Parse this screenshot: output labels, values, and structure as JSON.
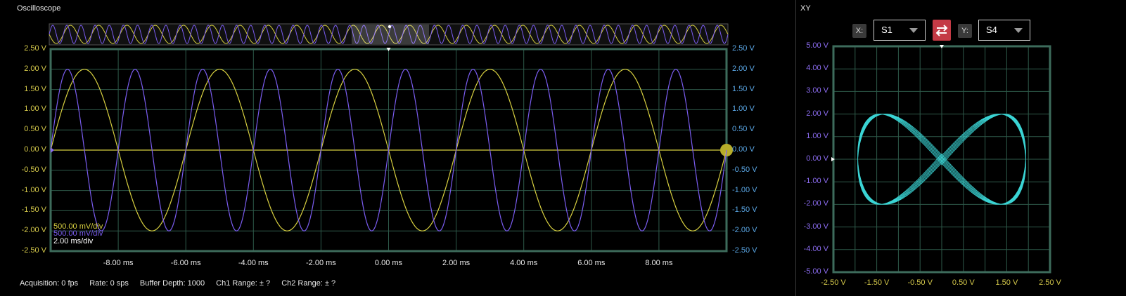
{
  "scope": {
    "title": "Oscilloscope",
    "y_left_ticks": [
      "2.50 V",
      "2.00 V",
      "1.50 V",
      "1.00 V",
      "0.50 V",
      "0.00 V",
      "-0.50 V",
      "-1.00 V",
      "-1.50 V",
      "-2.00 V",
      "-2.50 V"
    ],
    "y_right_ticks": [
      "2.50 V",
      "2.00 V",
      "1.50 V",
      "1.00 V",
      "0.50 V",
      "0.00 V",
      "-0.50 V",
      "-1.00 V",
      "-1.50 V",
      "-2.00 V",
      "-2.50 V"
    ],
    "x_ticks": [
      "-8.00 ms",
      "-6.00 ms",
      "-4.00 ms",
      "-2.00 ms",
      "0.00 ms",
      "2.00 ms",
      "4.00 ms",
      "6.00 ms",
      "8.00 ms"
    ],
    "ch1_div": "500.00 mV/div",
    "ch2_div": "500.00 mV/div",
    "time_div": "2.00 ms/div",
    "colors": {
      "ch1": "#d8d040",
      "ch2": "#7a5cf0",
      "grid": "#2e5a4a",
      "frame": "#3d6b5b",
      "overview_bg": "#101010"
    }
  },
  "status": {
    "acquisition": "Acquisition: 0 fps",
    "rate": "Rate: 0 sps",
    "buffer": "Buffer Depth: 1000",
    "ch1_range": "Ch1 Range: ± ?",
    "ch2_range": "Ch2 Range: ± ?"
  },
  "xy": {
    "title": "XY",
    "x_tag": "X:",
    "x_value": "S1",
    "y_tag": "Y:",
    "y_value": "S4",
    "swap_icon": "swap-arrows-icon",
    "y_ticks": [
      "5.00 V",
      "4.00 V",
      "3.00 V",
      "2.00 V",
      "1.00 V",
      "0.00 V",
      "-1.00 V",
      "-2.00 V",
      "-3.00 V",
      "-4.00 V",
      "-5.00 V"
    ],
    "x_ticks": [
      "-2.50 V",
      "-1.50 V",
      "-0.50 V",
      "0.50 V",
      "1.50 V",
      "2.50 V"
    ],
    "colors": {
      "trace": "#3ad4d4",
      "swap": "#c43a45"
    }
  },
  "chart_data": [
    {
      "type": "line",
      "title": "",
      "xlabel": "",
      "ylabel": "",
      "xlim": [
        -10,
        10
      ],
      "ylim": [
        -2.5,
        2.5
      ],
      "grid": true,
      "series": [
        {
          "name": "Ch1",
          "color": "#d8d040",
          "waveform": "sine",
          "amplitude": 2.0,
          "period_ms": 4.0,
          "phase_deg": 180
        },
        {
          "name": "Ch2",
          "color": "#7a5cf0",
          "waveform": "sine",
          "amplitude": 2.0,
          "period_ms": 2.0,
          "phase_deg": 0
        }
      ]
    },
    {
      "type": "scatter",
      "title": "XY",
      "xlim": [
        -2.5,
        2.5
      ],
      "ylim": [
        -5,
        5
      ],
      "grid": true,
      "series": [
        {
          "name": "S1 vs S4",
          "color": "#3ad4d4",
          "x_amplitude": 2.0,
          "y_amplitude": 2.0,
          "frequency_ratio": 2
        }
      ]
    }
  ]
}
